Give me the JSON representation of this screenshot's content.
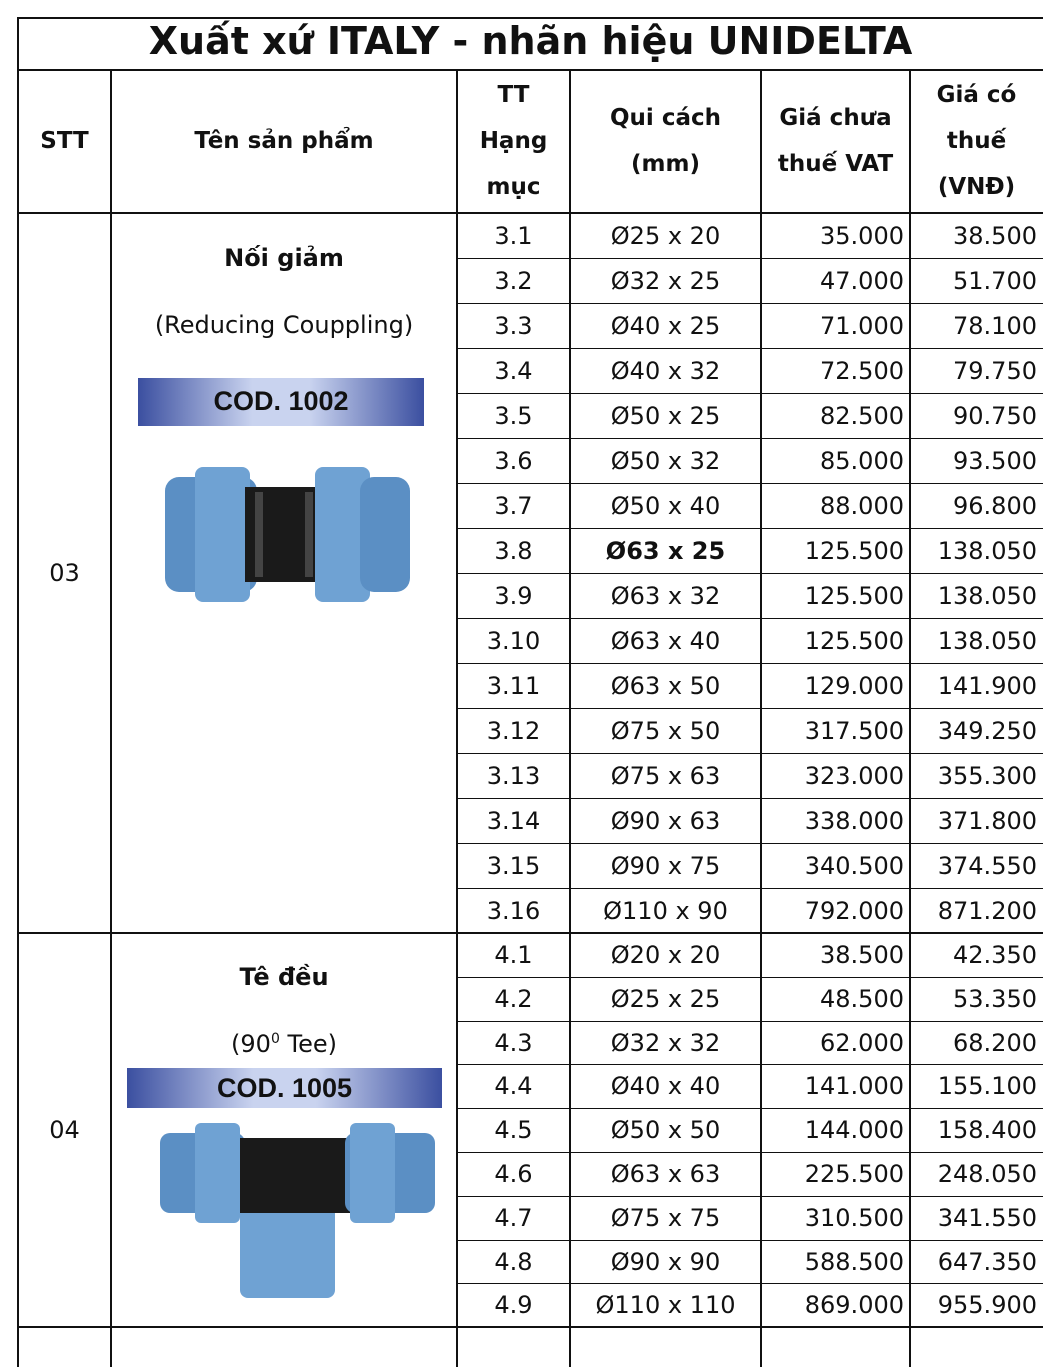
{
  "title": "Xuất xứ ITALY - nhãn hiệu UNIDELTA",
  "table": {
    "headers": [
      [
        "STT"
      ],
      [
        "Tên sản phẩm"
      ],
      [
        "TT",
        "Hạng",
        "mục"
      ],
      [
        "Qui cách",
        "(mm)"
      ],
      [
        "Giá chưa",
        "thuế VAT"
      ],
      [
        "Giá có",
        "thuế",
        "(VNĐ)"
      ]
    ],
    "groups": [
      {
        "stt": "03",
        "name": "Nối giảm",
        "subtitle": [
          "(Reducing Couppling)"
        ],
        "code": "COD. 1002",
        "bold_rows": [
          7
        ],
        "rows": [
          [
            "3.1",
            "Ø25 x 20",
            "35.000",
            "38.500"
          ],
          [
            "3.2",
            "Ø32 x 25",
            "47.000",
            "51.700"
          ],
          [
            "3.3",
            "Ø40 x 25",
            "71.000",
            "78.100"
          ],
          [
            "3.4",
            "Ø40 x 32",
            "72.500",
            "79.750"
          ],
          [
            "3.5",
            "Ø50 x 25",
            "82.500",
            "90.750"
          ],
          [
            "3.6",
            "Ø50 x 32",
            "85.000",
            "93.500"
          ],
          [
            "3.7",
            "Ø50 x 40",
            "88.000",
            "96.800"
          ],
          [
            "3.8",
            "Ø63 x 25",
            "125.500",
            "138.050"
          ],
          [
            "3.9",
            "Ø63 x 32",
            "125.500",
            "138.050"
          ],
          [
            "3.10",
            "Ø63 x 40",
            "125.500",
            "138.050"
          ],
          [
            "3.11",
            "Ø63 x 50",
            "129.000",
            "141.900"
          ],
          [
            "3.12",
            "Ø75 x 50",
            "317.500",
            "349.250"
          ],
          [
            "3.13",
            "Ø75 x 63",
            "323.000",
            "355.300"
          ],
          [
            "3.14",
            "Ø90 x 63",
            "338.000",
            "371.800"
          ],
          [
            "3.15",
            "Ø90 x 75",
            "340.500",
            "374.550"
          ],
          [
            "3.16",
            "Ø110 x 90",
            "792.000",
            "871.200"
          ]
        ]
      },
      {
        "stt": "04",
        "name": "Tê đều",
        "subtitle": [
          "(90",
          "0",
          " Tee)"
        ],
        "code": "COD. 1005",
        "bold_rows": [],
        "rows": [
          [
            "4.1",
            "Ø20 x 20",
            "38.500",
            "42.350"
          ],
          [
            "4.2",
            "Ø25 x 25",
            "48.500",
            "53.350"
          ],
          [
            "4.3",
            "Ø32 x 32",
            "62.000",
            "68.200"
          ],
          [
            "4.4",
            "Ø40 x 40",
            "141.000",
            "155.100"
          ],
          [
            "4.5",
            "Ø50 x 50",
            "144.000",
            "158.400"
          ],
          [
            "4.6",
            "Ø63 x 63",
            "225.500",
            "248.050"
          ],
          [
            "4.7",
            "Ø75 x 75",
            "310.500",
            "341.550"
          ],
          [
            "4.8",
            "Ø90 x 90",
            "588.500",
            "647.350"
          ],
          [
            "4.9",
            "Ø110 x 110",
            "869.000",
            "955.900"
          ]
        ]
      }
    ]
  }
}
